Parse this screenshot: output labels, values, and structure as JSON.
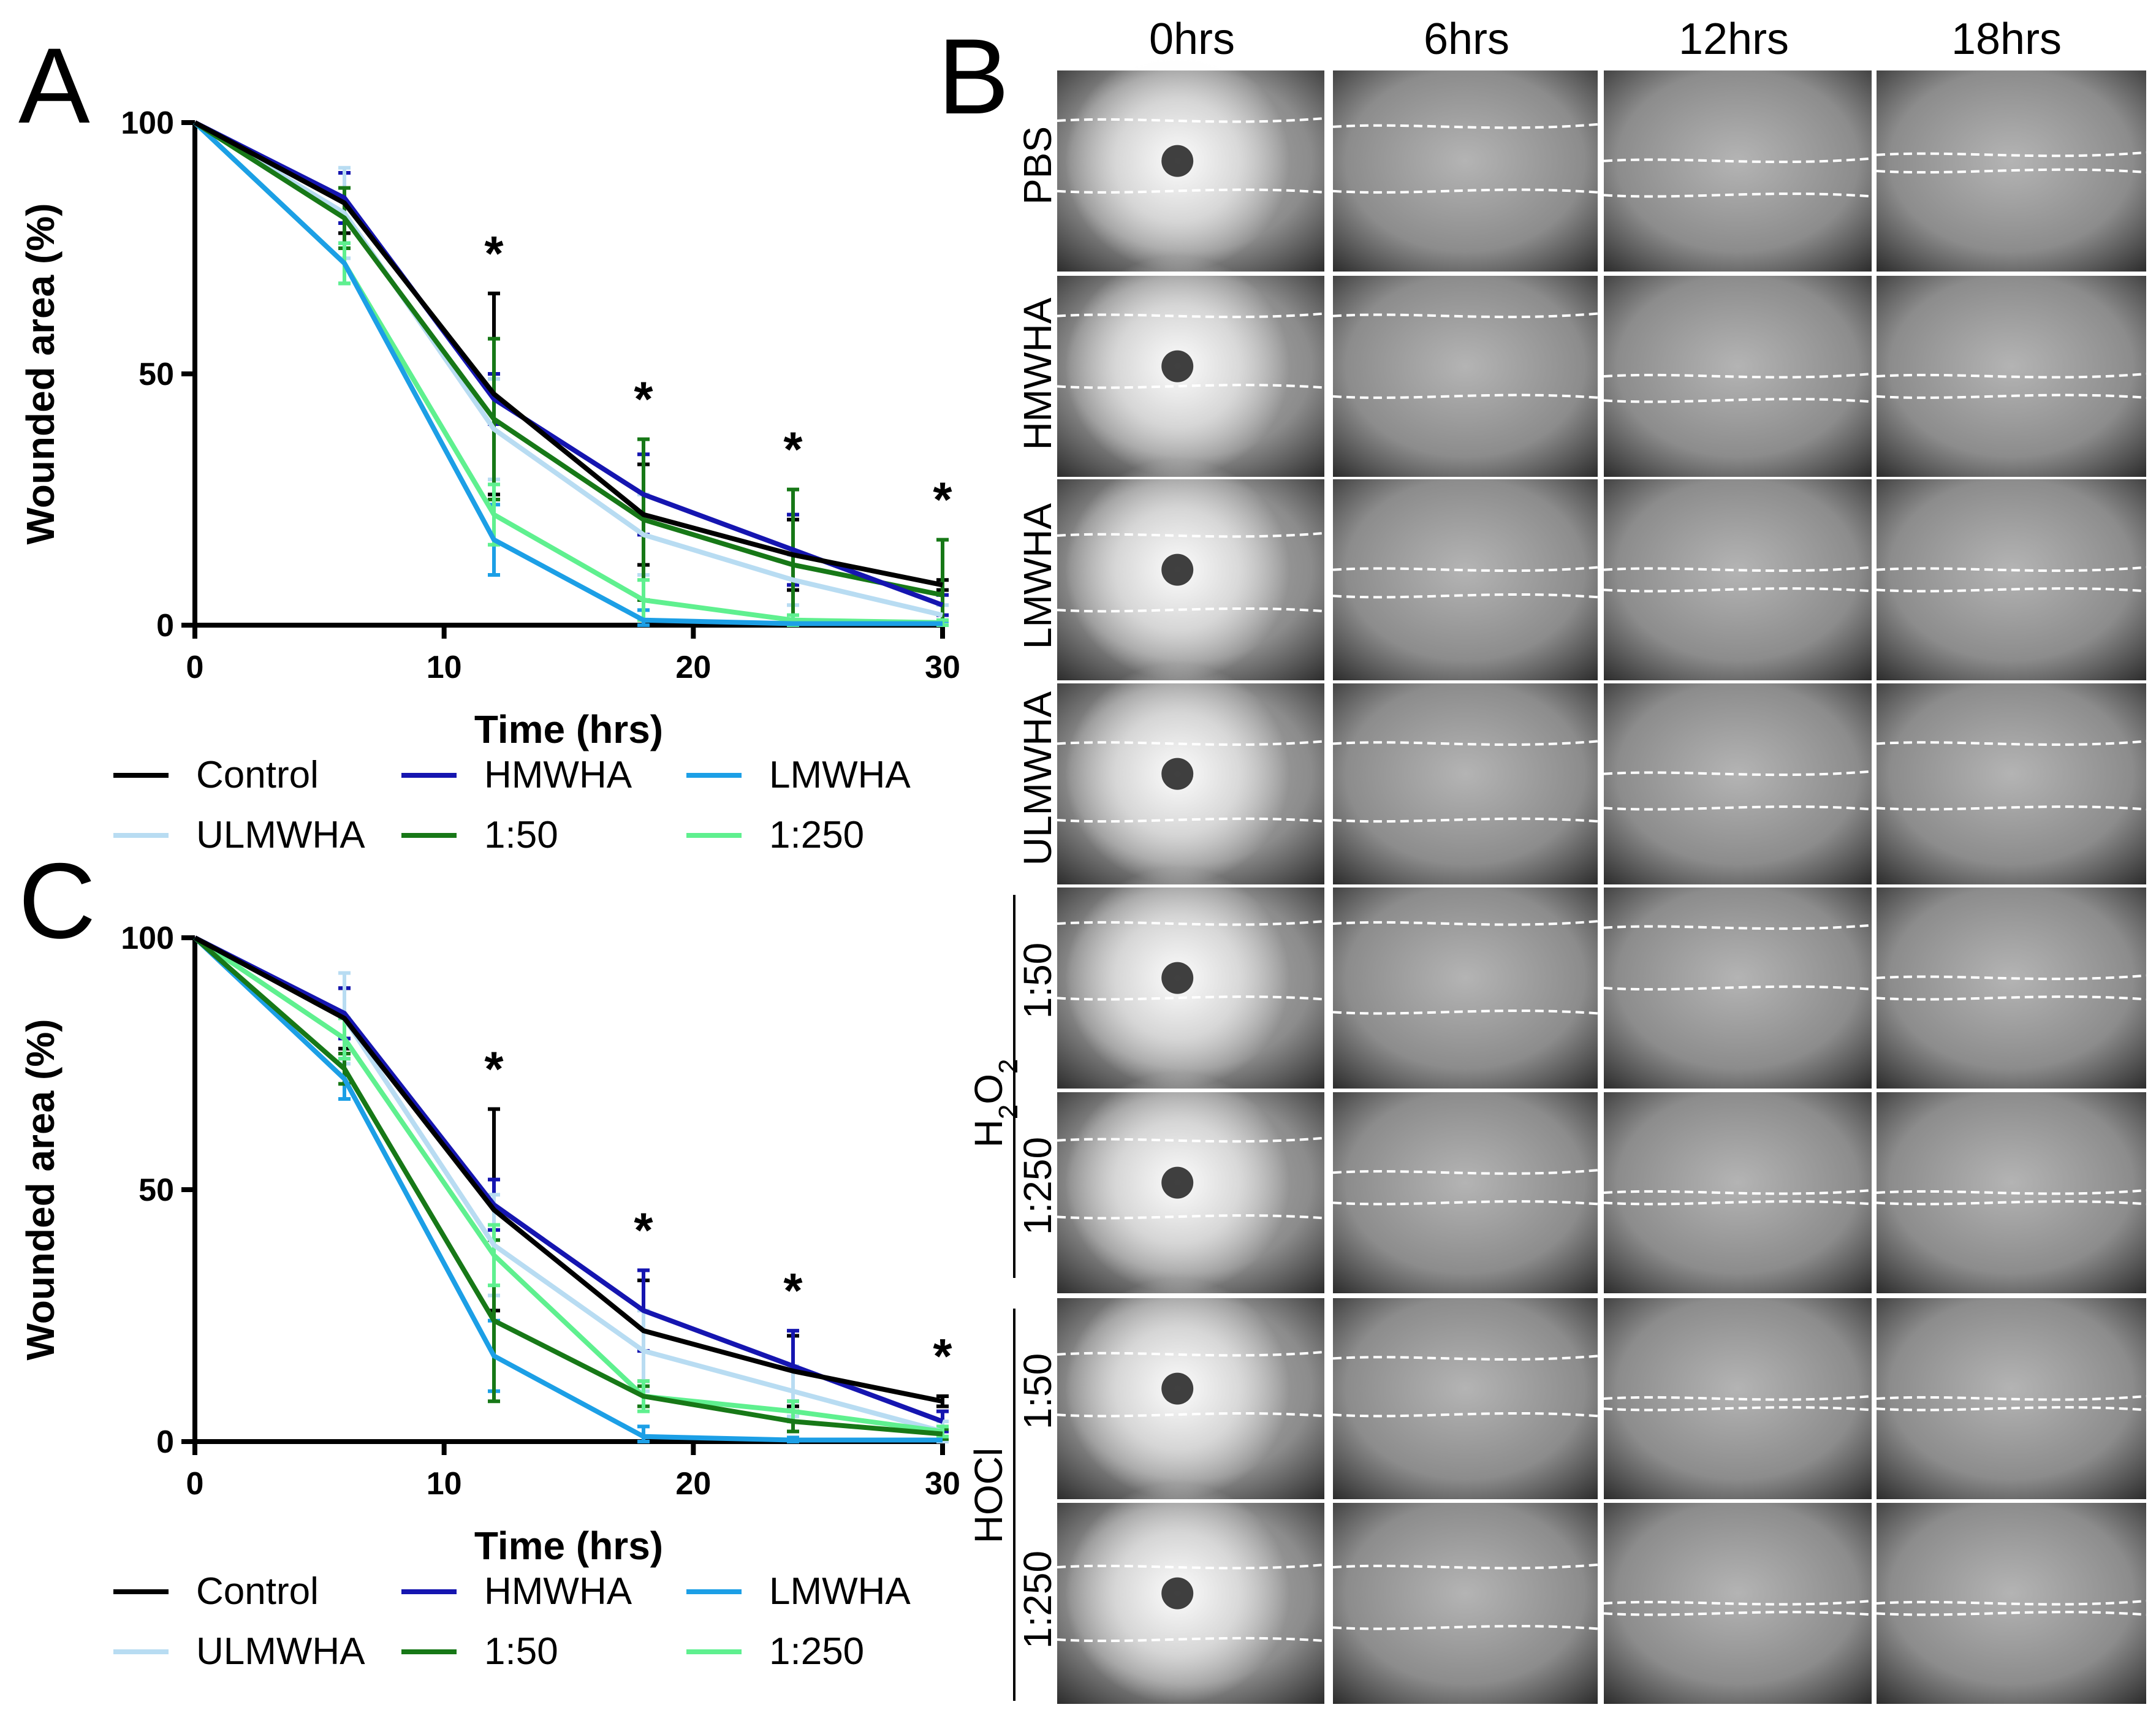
{
  "panel_labels": {
    "a": "A",
    "b": "B",
    "c": "C"
  },
  "chart_data": [
    {
      "panel": "A",
      "type": "line",
      "xlabel": "Time (hrs)",
      "ylabel": "Wounded area (%)",
      "xlim": [
        0,
        30
      ],
      "ylim": [
        0,
        100
      ],
      "xticks": [
        0,
        10,
        20,
        30
      ],
      "yticks": [
        0,
        50,
        100
      ],
      "legend": "below",
      "x": [
        0,
        6,
        12,
        18,
        24,
        30
      ],
      "series": [
        {
          "name": "Control",
          "color": "#000000",
          "values": [
            100,
            84,
            46,
            22,
            14,
            8
          ],
          "err": [
            0,
            6,
            20,
            10,
            7,
            1
          ]
        },
        {
          "name": "HMWHA",
          "color": "#1515b0",
          "values": [
            100,
            85,
            45,
            26,
            15,
            4
          ],
          "err": [
            0,
            5,
            5,
            8,
            7,
            2
          ]
        },
        {
          "name": "LMWHA",
          "color": "#1c9fe6",
          "values": [
            100,
            72,
            17,
            1,
            0.3,
            0.3
          ],
          "err": [
            0,
            4,
            7,
            2,
            0.5,
            0.5
          ]
        },
        {
          "name": "ULMWHA",
          "color": "#b8dcf2",
          "values": [
            100,
            82,
            39,
            18,
            9,
            2
          ],
          "err": [
            0,
            9,
            10,
            8,
            5,
            2
          ]
        },
        {
          "name": "1:50",
          "color": "#177817",
          "values": [
            100,
            81,
            41,
            21,
            12,
            6
          ],
          "err": [
            0,
            6,
            16,
            16,
            15,
            11
          ]
        },
        {
          "name": "1:250",
          "color": "#5ff08f",
          "values": [
            100,
            72,
            22,
            5,
            1,
            0.5
          ],
          "err": [
            0,
            4,
            6,
            4,
            1,
            0.5
          ]
        }
      ],
      "annotations": [
        {
          "x": 12,
          "text": "*"
        },
        {
          "x": 18,
          "text": "*"
        },
        {
          "x": 24,
          "text": "*"
        },
        {
          "x": 30,
          "text": "*"
        }
      ]
    },
    {
      "panel": "C",
      "type": "line",
      "xlabel": "Time (hrs)",
      "ylabel": "Wounded area (%)",
      "xlim": [
        0,
        30
      ],
      "ylim": [
        0,
        100
      ],
      "xticks": [
        0,
        10,
        20,
        30
      ],
      "yticks": [
        0,
        50,
        100
      ],
      "legend": "below",
      "x": [
        0,
        6,
        12,
        18,
        24,
        30
      ],
      "series": [
        {
          "name": "Control",
          "color": "#000000",
          "values": [
            100,
            84,
            46,
            22,
            14,
            8
          ],
          "err": [
            0,
            6,
            20,
            10,
            7,
            1
          ]
        },
        {
          "name": "HMWHA",
          "color": "#1515b0",
          "values": [
            100,
            85,
            47,
            26,
            15,
            4
          ],
          "err": [
            0,
            5,
            5,
            8,
            7,
            2
          ]
        },
        {
          "name": "LMWHA",
          "color": "#1c9fe6",
          "values": [
            100,
            72,
            17,
            1,
            0.3,
            0.3
          ],
          "err": [
            0,
            4,
            7,
            2,
            0.5,
            0.5
          ]
        },
        {
          "name": "ULMWHA",
          "color": "#b8dcf2",
          "values": [
            100,
            84,
            39,
            18,
            10,
            2
          ],
          "err": [
            0,
            9,
            10,
            8,
            5,
            2
          ]
        },
        {
          "name": "1:50",
          "color": "#177817",
          "values": [
            100,
            74,
            24,
            9,
            4,
            1.5
          ],
          "err": [
            0,
            3,
            16,
            2,
            2,
            1
          ]
        },
        {
          "name": "1:250",
          "color": "#5ff08f",
          "values": [
            100,
            80,
            37,
            9,
            6,
            2
          ],
          "err": [
            0,
            4,
            6,
            3,
            2,
            1
          ]
        }
      ],
      "annotations": [
        {
          "x": 12,
          "text": "*"
        },
        {
          "x": 18,
          "text": "*"
        },
        {
          "x": 24,
          "text": "*"
        },
        {
          "x": 30,
          "text": "*"
        }
      ]
    }
  ],
  "micrographs": {
    "columns": [
      "0hrs",
      "6hrs",
      "12hrs",
      "18hrs"
    ],
    "rows": [
      {
        "label": "PBS"
      },
      {
        "label": "HMWHA"
      },
      {
        "label": "LMWHA"
      },
      {
        "label": "ULMWHA"
      },
      {
        "label": "1:50"
      },
      {
        "label": "1:250"
      },
      {
        "label": "1:50"
      },
      {
        "label": "1:250"
      }
    ],
    "groups": [
      {
        "main": "H",
        "sub": "2",
        "main2": "O",
        "sub2": "2"
      },
      {
        "main": "HOCl"
      }
    ]
  }
}
